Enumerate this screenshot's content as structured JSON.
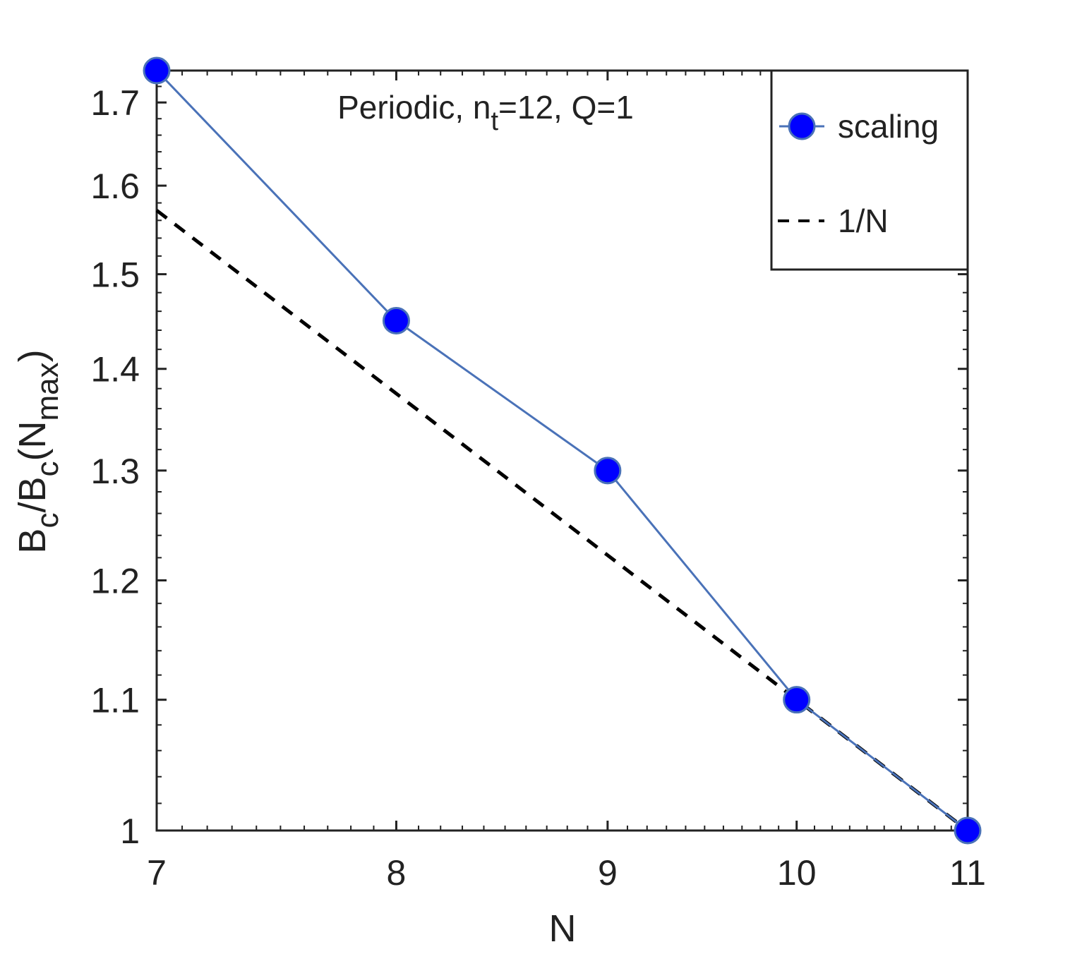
{
  "chart_data": {
    "type": "line",
    "title": {
      "prefix": "Periodic, n",
      "sub": "t",
      "suffix": "=12, Q=1"
    },
    "xlabel": "N",
    "ylabel": {
      "p1": "B",
      "s1": "c",
      "p2": "/B",
      "s2": "c",
      "p3": "(N",
      "s3": "max",
      "p4": ")"
    },
    "xscale": "log",
    "yscale": "log",
    "xlim": [
      7,
      11
    ],
    "ylim": [
      1,
      1.74
    ],
    "xticks": [
      7,
      8,
      9,
      10,
      11
    ],
    "xtick_labels": [
      "7",
      "8",
      "9",
      "10",
      "11"
    ],
    "yticks": [
      1,
      1.1,
      1.2,
      1.3,
      1.4,
      1.5,
      1.6,
      1.7
    ],
    "ytick_labels": [
      "1",
      "1.1",
      "1.2",
      "1.3",
      "1.4",
      "1.5",
      "1.6",
      "1.7"
    ],
    "legend_position": "top-right",
    "series": [
      {
        "name": "scaling",
        "style": "solid-with-markers",
        "color": "#4a72b8",
        "marker_color": "#0000ff",
        "x": [
          7,
          8,
          9,
          10,
          11
        ],
        "y": [
          1.74,
          1.45,
          1.3,
          1.1,
          1.0
        ]
      },
      {
        "name": "1/N",
        "style": "dashed",
        "color": "#000000",
        "x": [
          7,
          8,
          9,
          10,
          11
        ],
        "y": [
          1.5714,
          1.375,
          1.2222,
          1.1,
          1.0
        ]
      }
    ]
  }
}
